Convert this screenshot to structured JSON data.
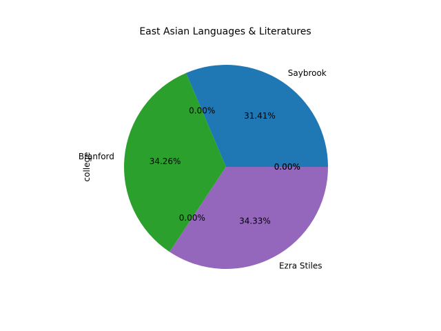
{
  "chart_data": {
    "type": "pie",
    "title": "East Asian Languages & Literatures",
    "ylabel": "college",
    "slices": [
      {
        "label": "Saybrook",
        "value": 31.41,
        "pct_label": "31.41%",
        "color": "#1f77b4"
      },
      {
        "label": "",
        "value": 0.0,
        "pct_label": "0.00%",
        "color": "#ff7f0e"
      },
      {
        "label": "Branford",
        "value": 34.26,
        "pct_label": "34.26%",
        "color": "#2ca02c"
      },
      {
        "label": "",
        "value": 0.0,
        "pct_label": "0.00%",
        "color": "#d62728"
      },
      {
        "label": "Ezra Stiles",
        "value": 34.33,
        "pct_label": "34.33%",
        "color": "#9467bd"
      },
      {
        "label": "",
        "value": 0.0,
        "pct_label": "0.00%",
        "color": "#8c564b"
      },
      {
        "label": "",
        "value": 0.0,
        "pct_label": "0.00%",
        "color": "#e377c2"
      }
    ]
  }
}
